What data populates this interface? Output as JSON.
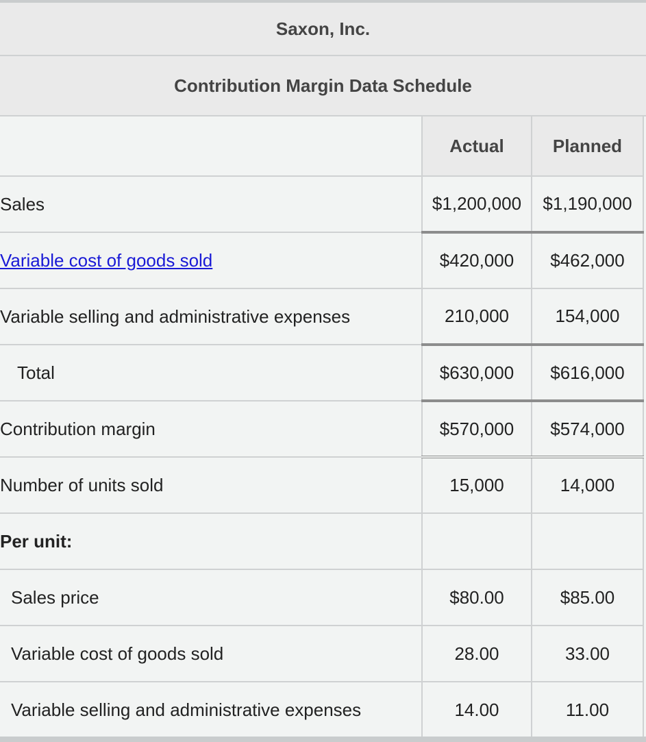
{
  "company": "Saxon, Inc.",
  "schedule_title": "Contribution Margin Data Schedule",
  "columns": {
    "actual": "Actual",
    "planned": "Planned"
  },
  "rows": {
    "sales": {
      "label": "Sales",
      "actual": "$1,200,000",
      "planned": "$1,190,000"
    },
    "vcogs": {
      "label": "Variable cost of goods sold",
      "actual": "$420,000",
      "planned": "$462,000"
    },
    "vsae": {
      "label": "Variable selling and administrative expenses",
      "actual": "210,000",
      "planned": "154,000"
    },
    "total": {
      "label": "Total",
      "actual": "$630,000",
      "planned": "$616,000"
    },
    "cm": {
      "label": "Contribution margin",
      "actual": "$570,000",
      "planned": "$574,000"
    },
    "units": {
      "label": "Number of units sold",
      "actual": "15,000",
      "planned": "14,000"
    },
    "per_unit": {
      "label": "Per unit:"
    },
    "price": {
      "label": "Sales price",
      "actual": "$80.00",
      "planned": "$85.00"
    },
    "vcogs_unit": {
      "label": "Variable cost of goods sold",
      "actual": "28.00",
      "planned": "33.00"
    },
    "vsae_unit": {
      "label": "Variable selling and administrative expenses",
      "actual": "14.00",
      "planned": "11.00"
    }
  }
}
